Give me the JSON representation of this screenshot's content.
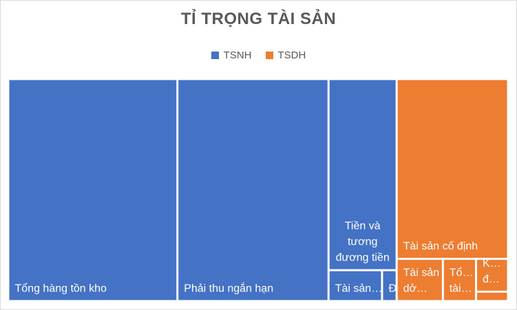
{
  "chart_data": {
    "type": "treemap",
    "title": "TỈ TRỌNG TÀI SẢN",
    "legend_position": "top",
    "series": [
      {
        "name": "TSNH",
        "color": "#4472C4",
        "items": [
          {
            "label": "Tổng hàng tồn kho",
            "display_lines": [
              "Tổng hàng tồn kho"
            ],
            "value": 75
          },
          {
            "label": "Phải thu ngắn hạn",
            "display_lines": [
              "Phải thu ngắn hạn"
            ],
            "value": 67
          },
          {
            "label": "Tiền và tương đương tiền",
            "display_lines": [
              "Tiền và",
              "tương",
              "đương tiền"
            ],
            "value": 26
          },
          {
            "label": "Tài sản…",
            "display_lines": [
              "Tài sản…"
            ],
            "value": 3.3
          },
          {
            "label": "Đ…",
            "display_lines": [
              "Đ…"
            ],
            "value": 0.9
          }
        ]
      },
      {
        "name": "TSDH",
        "color": "#ED7D31",
        "items": [
          {
            "label": "Tài sản cố định",
            "display_lines": [
              "Tài sản cố định"
            ],
            "value": 40
          },
          {
            "label": "Tài sản dở…",
            "display_lines": [
              "Tài sản",
              "dở…"
            ],
            "value": 3.9
          },
          {
            "label": "Tổ… tài…",
            "display_lines": [
              "Tổ…",
              "tài…"
            ],
            "value": 2.8
          },
          {
            "label": "K… đ…",
            "display_lines": [
              "K…",
              "đ…"
            ],
            "value": 2.1
          },
          {
            "label": "",
            "display_lines": [],
            "value": 0.6
          }
        ]
      }
    ]
  }
}
